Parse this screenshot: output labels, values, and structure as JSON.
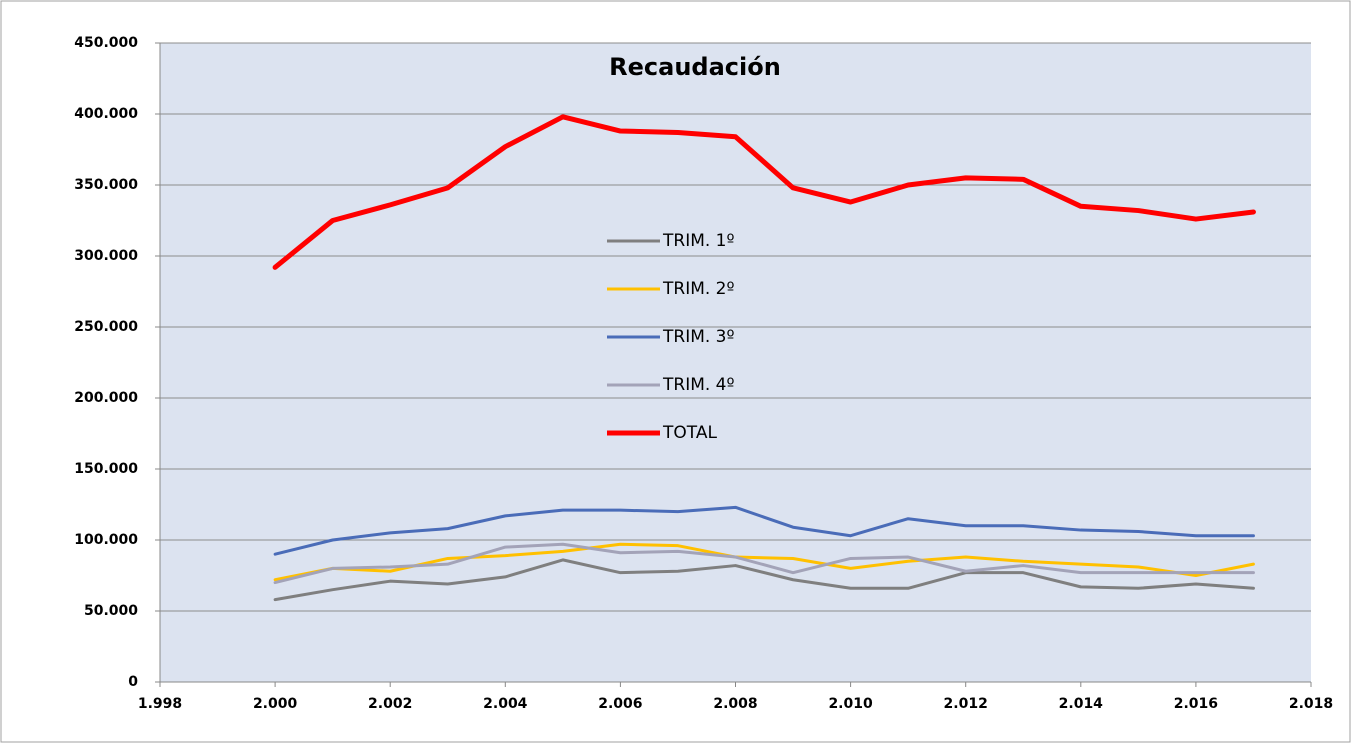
{
  "chart_data": {
    "type": "line",
    "title": "Recaudación",
    "x": [
      2000,
      2001,
      2002,
      2003,
      2004,
      2005,
      2006,
      2007,
      2008,
      2009,
      2010,
      2011,
      2012,
      2013,
      2014,
      2015,
      2016,
      2017
    ],
    "series": [
      {
        "name": "TRIM. 1º",
        "color": "#7f7f7f",
        "values": [
          58000,
          65000,
          71000,
          69000,
          74000,
          86000,
          77000,
          78000,
          82000,
          72000,
          66000,
          66000,
          77000,
          77000,
          67000,
          66000,
          69000,
          66000
        ]
      },
      {
        "name": "TRIM. 2º",
        "color": "#ffc000",
        "values": [
          72000,
          80000,
          78000,
          87000,
          89000,
          92000,
          97000,
          96000,
          88000,
          87000,
          80000,
          85000,
          88000,
          85000,
          83000,
          81000,
          75000,
          83000
        ]
      },
      {
        "name": "TRIM. 3º",
        "color": "#4a6cb8",
        "values": [
          90000,
          100000,
          105000,
          108000,
          117000,
          121000,
          121000,
          120000,
          123000,
          109000,
          103000,
          115000,
          110000,
          110000,
          107000,
          106000,
          103000,
          103000
        ]
      },
      {
        "name": "TRIM. 4º",
        "color": "#a3a3b8",
        "values": [
          70000,
          80000,
          81000,
          83000,
          95000,
          97000,
          91000,
          92000,
          88000,
          77000,
          87000,
          88000,
          78000,
          82000,
          77000,
          77000,
          77000,
          77000
        ]
      },
      {
        "name": "TOTAL",
        "color": "#ff0000",
        "values": [
          292000,
          325000,
          336000,
          348000,
          377000,
          398000,
          388000,
          387000,
          384000,
          348000,
          338000,
          350000,
          355000,
          354000,
          335000,
          332000,
          326000,
          331000
        ]
      }
    ],
    "xlim": [
      1998,
      2018
    ],
    "xticks": [
      {
        "value": 1998,
        "label": "1.998"
      },
      {
        "value": 2000,
        "label": "2.000"
      },
      {
        "value": 2002,
        "label": "2.002"
      },
      {
        "value": 2004,
        "label": "2.004"
      },
      {
        "value": 2006,
        "label": "2.006"
      },
      {
        "value": 2008,
        "label": "2.008"
      },
      {
        "value": 2010,
        "label": "2.010"
      },
      {
        "value": 2012,
        "label": "2.012"
      },
      {
        "value": 2014,
        "label": "2.014"
      },
      {
        "value": 2016,
        "label": "2.016"
      },
      {
        "value": 2018,
        "label": "2.018"
      }
    ],
    "ylim": [
      0,
      450000
    ],
    "yticks": [
      0,
      {
        "value": 50000,
        "label": "50.000"
      },
      {
        "value": 100000,
        "label": "100.000"
      },
      {
        "value": 150000,
        "label": "150.000"
      },
      {
        "value": 200000,
        "label": "200.000"
      },
      {
        "value": 250000,
        "label": "250.000"
      },
      {
        "value": 300000,
        "label": "300.000"
      },
      {
        "value": 350000,
        "label": "350.000"
      },
      {
        "value": 400000,
        "label": "400.000"
      },
      {
        "value": 450000,
        "label": "450.000"
      }
    ],
    "grid": true,
    "legend": "center"
  }
}
